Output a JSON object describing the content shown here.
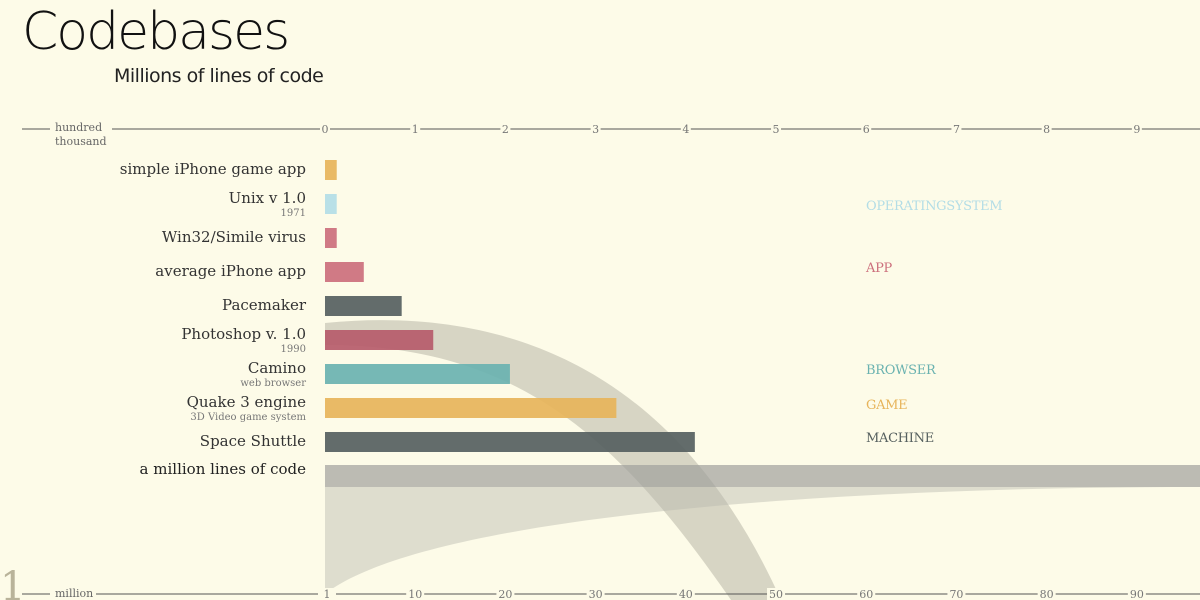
{
  "page": {
    "title": "Codebases",
    "subtitle": "Millions of lines of code"
  },
  "chart_data": {
    "type": "bar",
    "title": "Codebases",
    "subtitle": "Millions of lines of code",
    "top_axis": {
      "unit_label": [
        "hundred",
        "thousand"
      ],
      "ticks": [
        0,
        1,
        2,
        3,
        4,
        5,
        6,
        7,
        8,
        9
      ],
      "range": [
        0,
        9.7
      ]
    },
    "bottom_axis": {
      "unit_label": [
        "million"
      ],
      "ticks": [
        1,
        10,
        20,
        30,
        40,
        50,
        60,
        70,
        80,
        90
      ],
      "range": [
        0,
        97
      ]
    },
    "scale_marker": "1",
    "items": [
      {
        "label": "simple iPhone game app",
        "sublabel": "",
        "value": 0.13,
        "category": "GAME"
      },
      {
        "label": "Unix v 1.0",
        "sublabel": "1971",
        "value": 0.13,
        "category": "OPERATING SYSTEM"
      },
      {
        "label": "Win32/Simile virus",
        "sublabel": "",
        "value": 0.13,
        "category": "APP"
      },
      {
        "label": "average iPhone app",
        "sublabel": "",
        "value": 0.43,
        "category": "APP"
      },
      {
        "label": "Pacemaker",
        "sublabel": "",
        "value": 0.85,
        "category": "MACHINE"
      },
      {
        "label": "Photoshop v. 1.0",
        "sublabel": "1990",
        "value": 1.2,
        "category": "APP"
      },
      {
        "label": "Camino",
        "sublabel": "web browser",
        "value": 2.05,
        "category": "BROWSER"
      },
      {
        "label": "Quake 3 engine",
        "sublabel": "3D Video game system",
        "value": 3.23,
        "category": "GAME"
      },
      {
        "label": "Space Shuttle",
        "sublabel": "",
        "value": 4.1,
        "category": "MACHINE"
      }
    ],
    "million_row": {
      "label": "a million lines of code",
      "value": 10
    },
    "legend": [
      {
        "name": "OPERATING SYSTEM",
        "color": "#b3dde6"
      },
      {
        "name": "APP",
        "color": "#cc6f7c"
      },
      {
        "name": "BROWSER",
        "color": "#6ab2b0"
      },
      {
        "name": "GAME",
        "color": "#e7b45a"
      },
      {
        "name": "MACHINE",
        "color": "#56605f"
      }
    ],
    "bar_colors": {
      "GAME": "#e7b45a",
      "OPERATING SYSTEM": "#b3dde6",
      "APP": "#cc6f7c",
      "APP_dark": "#b65b6a",
      "BROWSER": "#6ab2b0",
      "MACHINE": "#56605f"
    },
    "legend_placement": "right",
    "grid": false
  }
}
